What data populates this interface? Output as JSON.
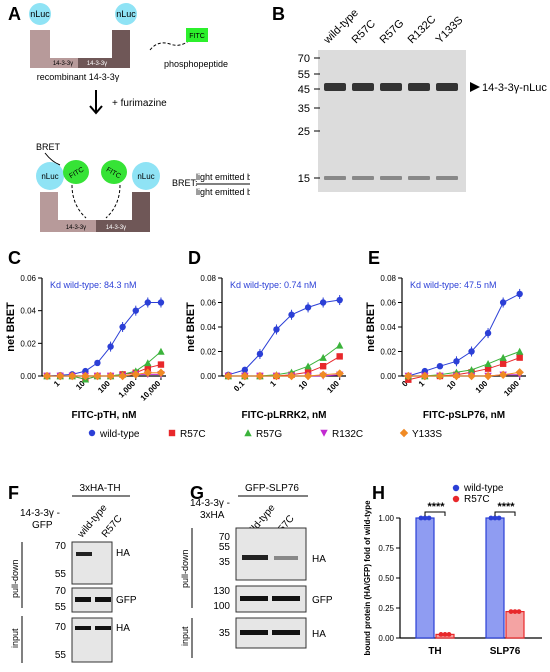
{
  "panels": {
    "A": {
      "letter": "A",
      "nluc": "nLuc",
      "fitc": "FITC",
      "phosphopeptide": "phosphopeptide",
      "protein_label": "14-3-3γ",
      "recombinant": "recombinant 14-3-3γ",
      "furimazine": "+ furimazine",
      "bret": "BRET",
      "bret_def_label": "BRET:",
      "bret_num": "light emitted by FITC",
      "bret_den": "light emitted by nLuc"
    },
    "B": {
      "letter": "B",
      "lanes": [
        "wild-type",
        "R57C",
        "R57G",
        "R132C",
        "Y133S"
      ],
      "markers": [
        "70",
        "55",
        "45",
        "35",
        "25",
        "15"
      ],
      "band_label": "14-3-3γ-nLuc"
    },
    "charts_text": {
      "C": "C",
      "D": "D",
      "E": "E",
      "kd_C": "Kd wild-type: 84.3 nM",
      "kd_D": "Kd wild-type: 0.74 nM",
      "kd_E": "Kd wild-type: 47.5 nM",
      "ylabel": "net BRET"
    },
    "legend": [
      {
        "label": "wild-type",
        "color": "#2b3fd6",
        "marker": "circle"
      },
      {
        "label": "R57C",
        "color": "#e8282b",
        "marker": "square"
      },
      {
        "label": "R57G",
        "color": "#3bb33b",
        "marker": "triangle"
      },
      {
        "label": "R132C",
        "color": "#c22ad1",
        "marker": "triangle-down"
      },
      {
        "label": "Y133S",
        "color": "#f08a24",
        "marker": "diamond"
      }
    ],
    "F": {
      "letter": "F",
      "construct": "3xHA-TH",
      "bait": "14-3-3γ -",
      "bait2": "GFP",
      "lanes": [
        "wild-type",
        "R57C"
      ],
      "pulldown": "pull-down",
      "input": "input",
      "markers_top": [
        "70",
        "55"
      ],
      "markers_mid": [
        "70",
        "55"
      ],
      "markers_bot": [
        "70",
        "55"
      ],
      "band_top": "HA",
      "band_mid": "GFP",
      "band_bot": "HA"
    },
    "G": {
      "letter": "G",
      "construct": "GFP-SLP76",
      "bait": "14-3-3γ -",
      "bait2": "3xHA",
      "lanes": [
        "wild-type",
        "R57C"
      ],
      "pulldown": "pull-down",
      "input": "input",
      "markers_top": [
        "70",
        "55",
        "35"
      ],
      "markers_mid": [
        "130",
        "100"
      ],
      "markers_bot": [
        "35"
      ],
      "band_top": "HA",
      "band_mid": "GFP",
      "band_bot": "HA"
    },
    "H": {
      "letter": "H",
      "ylabel": "bound protein (HA/GFP) fold of wild-type",
      "sig": "****"
    }
  },
  "chart_data": [
    {
      "panel": "C",
      "type": "scatter",
      "xlabel": "FITC-pTH, nM",
      "ylabel": "net BRET",
      "x_scale": "log",
      "ylim": [
        0,
        0.06
      ],
      "yticks": [
        "0.00",
        "0.02",
        "0.04",
        "0.06"
      ],
      "xticks": [
        "1",
        "10",
        "100",
        "1,000",
        "10,000"
      ],
      "series": [
        {
          "name": "wild-type",
          "x": [
            0.3,
            1,
            3,
            10,
            30,
            100,
            300,
            1000,
            3000,
            10000
          ],
          "y": [
            0.0,
            0.0005,
            0.001,
            0.003,
            0.008,
            0.018,
            0.03,
            0.04,
            0.045,
            0.045
          ]
        },
        {
          "name": "R57C",
          "x": [
            0.3,
            1,
            3,
            10,
            30,
            100,
            300,
            1000,
            3000,
            10000
          ],
          "y": [
            0.0,
            0.0,
            0.0,
            -0.002,
            0.0,
            0.0,
            0.001,
            0.002,
            0.005,
            0.007
          ]
        },
        {
          "name": "R57G",
          "x": [
            0.3,
            1,
            3,
            10,
            30,
            100,
            300,
            1000,
            3000,
            10000
          ],
          "y": [
            0.0,
            0.0,
            0.0,
            -0.002,
            0.0,
            0.0,
            0.001,
            0.003,
            0.008,
            0.015
          ]
        },
        {
          "name": "R132C",
          "x": [
            0.3,
            1,
            3,
            10,
            30,
            100,
            300,
            1000,
            3000,
            10000
          ],
          "y": [
            0.0,
            0.0,
            0.0,
            0.0,
            0.0,
            0.0,
            0.0,
            0.001,
            0.001,
            0.001
          ]
        },
        {
          "name": "Y133S",
          "x": [
            0.3,
            1,
            3,
            10,
            30,
            100,
            300,
            1000,
            3000,
            10000
          ],
          "y": [
            0.0,
            0.0,
            0.0,
            0.0,
            0.0,
            0.0,
            0.0,
            0.001,
            0.002,
            0.002
          ]
        }
      ]
    },
    {
      "panel": "D",
      "type": "scatter",
      "xlabel": "FITC-pLRRK2, nM",
      "ylabel": "net BRET",
      "x_scale": "log",
      "ylim": [
        0,
        0.08
      ],
      "yticks": [
        "0.00",
        "0.02",
        "0.04",
        "0.06",
        "0.08"
      ],
      "xticks": [
        "0.1",
        "1",
        "10",
        "100"
      ],
      "series": [
        {
          "name": "wild-type",
          "x": [
            0.03,
            0.1,
            0.3,
            1,
            3,
            10,
            30,
            100
          ],
          "y": [
            0.001,
            0.005,
            0.018,
            0.038,
            0.05,
            0.056,
            0.06,
            0.062
          ]
        },
        {
          "name": "R57C",
          "x": [
            0.03,
            0.1,
            0.3,
            1,
            3,
            10,
            30,
            100
          ],
          "y": [
            0.0,
            0.0,
            0.0,
            0.0,
            0.001,
            0.003,
            0.008,
            0.016
          ]
        },
        {
          "name": "R57G",
          "x": [
            0.03,
            0.1,
            0.3,
            1,
            3,
            10,
            30,
            100
          ],
          "y": [
            0.0,
            0.0,
            0.0,
            0.001,
            0.003,
            0.008,
            0.015,
            0.025
          ]
        },
        {
          "name": "R132C",
          "x": [
            0.03,
            0.1,
            0.3,
            1,
            3,
            10,
            30,
            100
          ],
          "y": [
            0.0,
            0.0,
            0.0,
            0.0,
            0.0,
            0.0,
            0.0,
            0.001
          ]
        },
        {
          "name": "Y133S",
          "x": [
            0.03,
            0.1,
            0.3,
            1,
            3,
            10,
            30,
            100
          ],
          "y": [
            0.0,
            0.0,
            0.0,
            0.0,
            0.0,
            0.0,
            0.001,
            0.002
          ]
        }
      ]
    },
    {
      "panel": "E",
      "type": "scatter",
      "xlabel": "FITC-pSLP76, nM",
      "ylabel": "net BRET",
      "x_scale": "log",
      "ylim": [
        0,
        0.08
      ],
      "yticks": [
        "0.00",
        "0.02",
        "0.04",
        "0.06",
        "0.08"
      ],
      "xticks": [
        "0",
        "1",
        "10",
        "100",
        "1000"
      ],
      "series": [
        {
          "name": "wild-type",
          "x": [
            0.3,
            1,
            3,
            10,
            30,
            100,
            300,
            1000
          ],
          "y": [
            0.0,
            0.004,
            0.008,
            0.012,
            0.02,
            0.035,
            0.06,
            0.067
          ]
        },
        {
          "name": "R57C",
          "x": [
            0.3,
            1,
            3,
            10,
            30,
            100,
            300,
            1000
          ],
          "y": [
            -0.003,
            0.0,
            0.0,
            0.001,
            0.003,
            0.006,
            0.01,
            0.015
          ]
        },
        {
          "name": "R57G",
          "x": [
            0.3,
            1,
            3,
            10,
            30,
            100,
            300,
            1000
          ],
          "y": [
            0.0,
            0.0,
            0.001,
            0.003,
            0.005,
            0.01,
            0.015,
            0.02
          ]
        },
        {
          "name": "R132C",
          "x": [
            0.3,
            1,
            3,
            10,
            30,
            100,
            300,
            1000
          ],
          "y": [
            0.0,
            0.0,
            0.0,
            0.0,
            0.0,
            0.0,
            0.001,
            0.001
          ]
        },
        {
          "name": "Y133S",
          "x": [
            0.3,
            1,
            3,
            10,
            30,
            100,
            300,
            1000
          ],
          "y": [
            0.0,
            0.0,
            0.0,
            0.0,
            0.0,
            0.0,
            0.001,
            0.003
          ]
        }
      ]
    },
    {
      "panel": "H",
      "type": "bar",
      "categories": [
        "TH",
        "SLP76"
      ],
      "ylabel": "bound protein (HA/GFP) fold of wild-type",
      "ylim": [
        0,
        1.0
      ],
      "yticks": [
        "0.00",
        "0.25",
        "0.50",
        "0.75",
        "1.00"
      ],
      "series": [
        {
          "name": "wild-type",
          "color": "#2b3fd6",
          "values": [
            1.0,
            1.0
          ]
        },
        {
          "name": "R57C",
          "color": "#e8282b",
          "values": [
            0.03,
            0.22
          ]
        }
      ]
    }
  ]
}
